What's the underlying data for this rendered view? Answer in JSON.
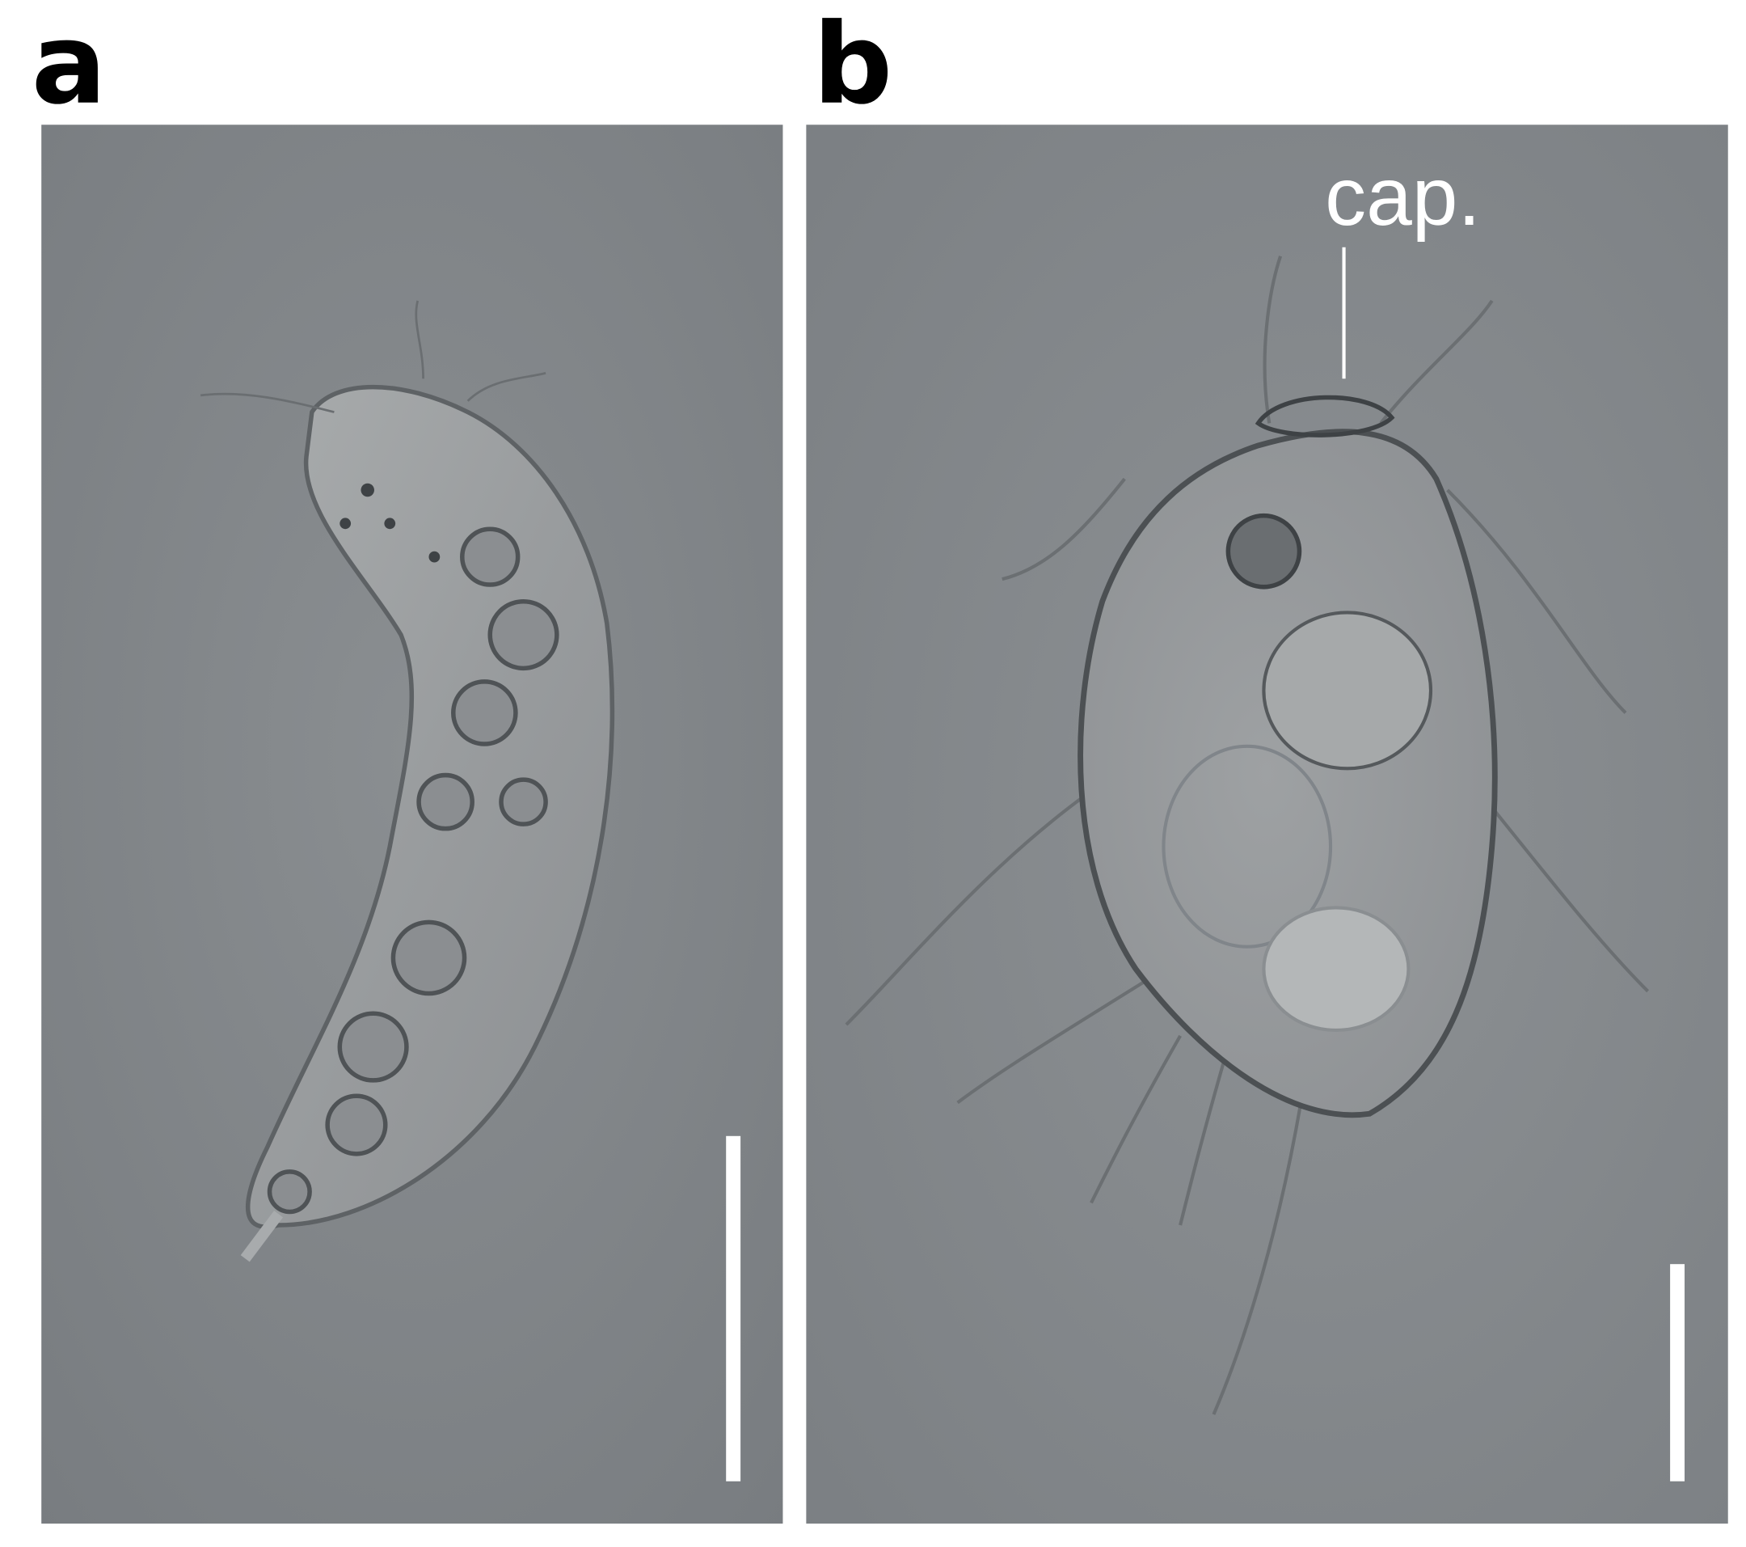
{
  "panels": [
    {
      "label": "a"
    },
    {
      "label": "b",
      "annotation": "cap."
    }
  ]
}
